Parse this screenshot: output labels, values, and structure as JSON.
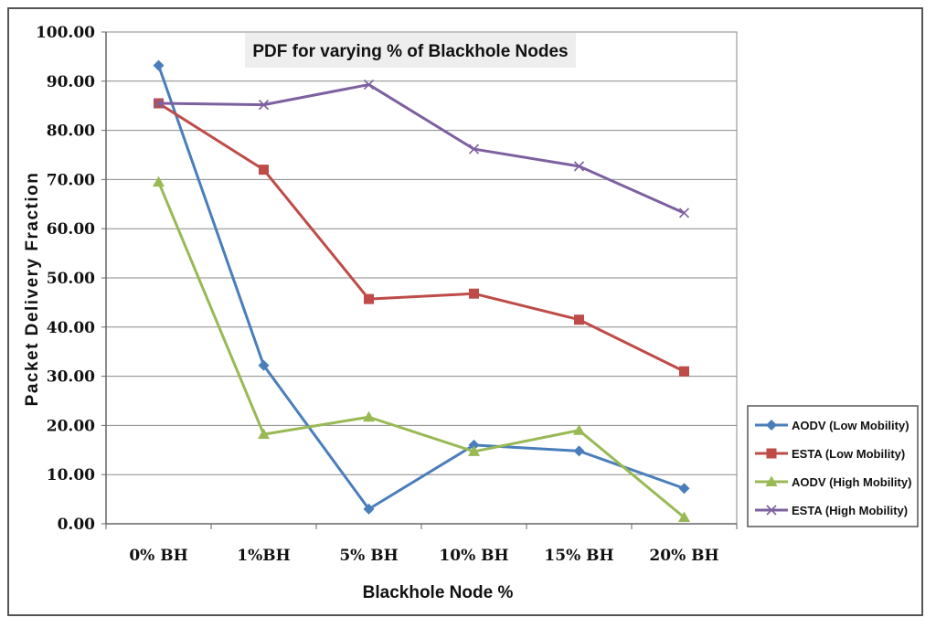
{
  "chart_data": {
    "type": "line",
    "title": "PDF for varying % of Blackhole Nodes",
    "xlabel": "Blackhole Node %",
    "ylabel": "Packet Delivery Fraction",
    "categories": [
      "0% BH",
      "1%BH",
      "5% BH",
      "10% BH",
      "15% BH",
      "20% BH"
    ],
    "ylim": [
      0,
      100
    ],
    "yticks": [
      "0.00",
      "10.00",
      "20.00",
      "30.00",
      "40.00",
      "50.00",
      "60.00",
      "70.00",
      "80.00",
      "90.00",
      "100.00"
    ],
    "grid": true,
    "legend_position": "right",
    "series": [
      {
        "name": "AODV (Low Mobility)",
        "marker": "diamond",
        "color": "#4a7ebb",
        "values": [
          93.2,
          32.2,
          3.0,
          16.0,
          14.8,
          7.2
        ]
      },
      {
        "name": "ESTA (Low Mobility)",
        "marker": "square",
        "color": "#be4b48",
        "values": [
          85.5,
          72.0,
          45.7,
          46.8,
          41.5,
          31.0
        ]
      },
      {
        "name": "AODV (High Mobility)",
        "marker": "triangle",
        "color": "#98b954",
        "values": [
          69.5,
          18.2,
          21.7,
          14.7,
          19.0,
          1.3
        ]
      },
      {
        "name": "ESTA (High Mobility)",
        "marker": "x",
        "color": "#7d60a0",
        "values": [
          85.5,
          85.2,
          89.3,
          76.2,
          72.7,
          63.2
        ]
      }
    ]
  }
}
